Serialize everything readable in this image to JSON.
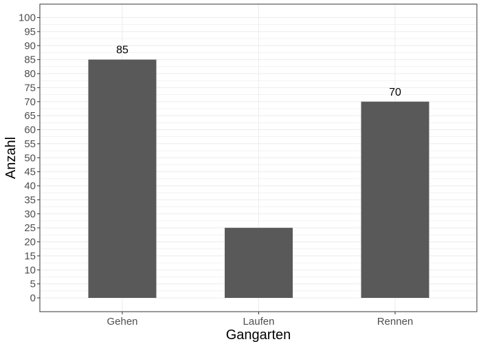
{
  "chart_data": {
    "type": "bar",
    "categories": [
      "Gehen",
      "Laufen",
      "Rennen"
    ],
    "values": [
      85,
      25,
      70
    ],
    "data_labels": [
      "85",
      "",
      "70"
    ],
    "title": "",
    "xlabel": "Gangarten",
    "ylabel": "Anzahl",
    "ylim": [
      0,
      100
    ],
    "y_ticks": [
      "0",
      "5",
      "10",
      "15",
      "20",
      "25",
      "30",
      "35",
      "40",
      "45",
      "50",
      "55",
      "60",
      "65",
      "70",
      "75",
      "80",
      "85",
      "90",
      "95",
      "100"
    ],
    "grid": true,
    "legend": "none",
    "colors": {
      "bar": "#595959",
      "grid": "#ebebeb",
      "panel_border": "#333333",
      "tick_text": "#4d4d4d"
    }
  }
}
